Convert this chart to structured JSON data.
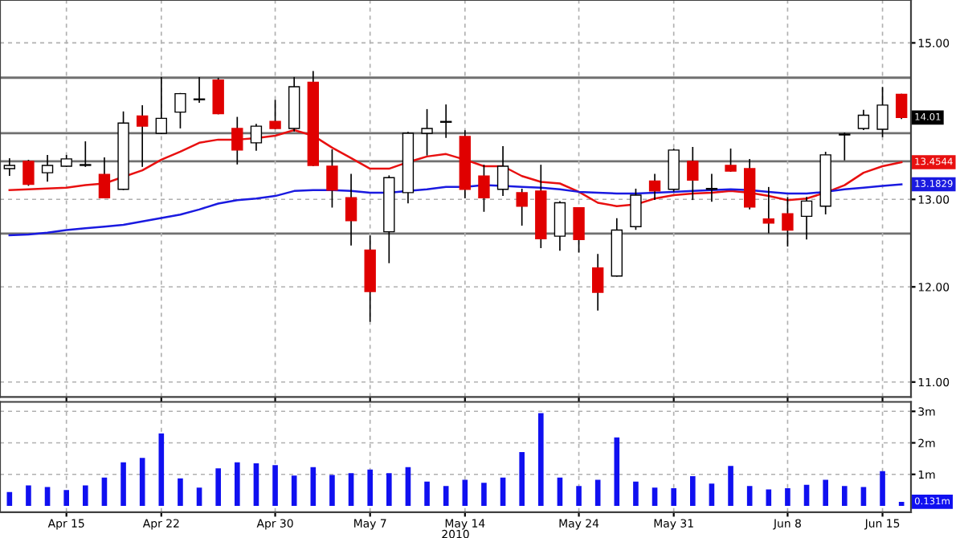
{
  "chart_data": [
    {
      "type": "candlestick",
      "categories": [
        null,
        null,
        null,
        null,
        null,
        null,
        null,
        null,
        null,
        null,
        null,
        null,
        null,
        null,
        null,
        null,
        null,
        null,
        null,
        null,
        null,
        null,
        null,
        null,
        null,
        null,
        null,
        null,
        null,
        null,
        null,
        null,
        null,
        null,
        null,
        null,
        null,
        null,
        null,
        null,
        null,
        null,
        null,
        null,
        null,
        null,
        null,
        null
      ],
      "ohlc": [
        [
          13.37,
          13.49,
          13.29,
          13.41
        ],
        [
          13.46,
          13.47,
          13.17,
          13.18
        ],
        [
          13.32,
          13.53,
          13.22,
          13.41
        ],
        [
          13.4,
          13.53,
          13.4,
          13.49
        ],
        [
          13.41,
          13.7,
          13.4,
          13.42
        ],
        [
          13.3,
          13.5,
          13.02,
          13.02
        ],
        [
          13.12,
          14.08,
          13.12,
          13.94
        ],
        [
          14.03,
          14.16,
          13.4,
          13.9
        ],
        [
          13.81,
          14.53,
          13.81,
          14.0
        ],
        [
          14.08,
          14.32,
          13.88,
          14.32
        ],
        [
          14.24,
          14.53,
          14.21,
          14.25
        ],
        [
          14.5,
          14.52,
          14.06,
          14.06
        ],
        [
          13.87,
          14.01,
          13.43,
          13.6
        ],
        [
          13.69,
          13.92,
          13.6,
          13.9
        ],
        [
          13.96,
          14.23,
          13.87,
          13.87
        ],
        [
          13.87,
          14.53,
          13.84,
          14.41
        ],
        [
          14.47,
          14.61,
          13.41,
          13.41
        ],
        [
          13.4,
          13.6,
          12.91,
          13.11
        ],
        [
          13.02,
          13.3,
          12.47,
          12.75
        ],
        [
          12.41,
          12.57,
          11.63,
          11.95
        ],
        [
          12.62,
          13.28,
          12.27,
          13.26
        ],
        [
          13.08,
          13.82,
          12.96,
          13.81
        ],
        [
          13.81,
          14.11,
          13.54,
          13.87
        ],
        [
          13.95,
          14.17,
          13.76,
          13.96
        ],
        [
          13.77,
          13.84,
          13.02,
          13.12
        ],
        [
          13.28,
          13.41,
          12.86,
          13.02
        ],
        [
          13.12,
          13.64,
          13.05,
          13.4
        ],
        [
          13.08,
          13.12,
          12.7,
          12.92
        ],
        [
          13.1,
          13.41,
          12.44,
          12.54
        ],
        [
          12.57,
          12.97,
          12.41,
          12.96
        ],
        [
          12.9,
          12.9,
          12.39,
          12.53
        ],
        [
          12.21,
          12.36,
          11.75,
          11.94
        ],
        [
          12.12,
          12.77,
          12.12,
          12.64
        ],
        [
          12.68,
          13.12,
          12.65,
          13.05
        ],
        [
          13.22,
          13.3,
          13.0,
          13.1
        ],
        [
          13.12,
          13.61,
          13.1,
          13.6
        ],
        [
          13.46,
          13.63,
          13.0,
          13.23
        ],
        [
          13.12,
          13.3,
          12.98,
          13.13
        ],
        [
          13.41,
          13.61,
          13.34,
          13.34
        ],
        [
          13.37,
          13.48,
          12.89,
          12.91
        ],
        [
          12.77,
          13.14,
          12.61,
          12.72
        ],
        [
          12.83,
          13.02,
          12.46,
          12.64
        ],
        [
          12.8,
          13.02,
          12.54,
          12.98
        ],
        [
          12.92,
          13.57,
          12.83,
          13.54
        ],
        [
          13.79,
          13.81,
          13.48,
          13.8
        ],
        [
          13.87,
          14.1,
          13.86,
          14.04
        ],
        [
          13.86,
          14.4,
          13.77,
          14.17
        ],
        [
          14.31,
          14.31,
          14.0,
          14.01
        ]
      ],
      "series": [
        {
          "type": "line",
          "color": "#e81010",
          "values": [
            13.11,
            13.12,
            13.13,
            13.14,
            13.17,
            13.19,
            13.27,
            13.35,
            13.48,
            13.58,
            13.69,
            13.73,
            13.73,
            13.75,
            13.78,
            13.85,
            13.78,
            13.63,
            13.5,
            13.37,
            13.37,
            13.45,
            13.52,
            13.55,
            13.48,
            13.4,
            13.4,
            13.28,
            13.21,
            13.19,
            13.09,
            12.96,
            12.92,
            12.94,
            13.01,
            13.05,
            13.07,
            13.08,
            13.1,
            13.08,
            13.04,
            12.99,
            13.01,
            13.08,
            13.17,
            13.32,
            13.4,
            13.45
          ]
        },
        {
          "type": "line",
          "color": "#1a1ae0",
          "values": [
            12.58,
            12.59,
            12.61,
            12.64,
            12.66,
            12.68,
            12.7,
            12.74,
            12.78,
            12.82,
            12.88,
            12.95,
            12.99,
            13.01,
            13.04,
            13.1,
            13.11,
            13.11,
            13.1,
            13.08,
            13.08,
            13.1,
            13.12,
            13.15,
            13.15,
            13.17,
            13.16,
            13.15,
            13.14,
            13.12,
            13.09,
            13.08,
            13.07,
            13.07,
            13.08,
            13.09,
            13.1,
            13.11,
            13.12,
            13.11,
            13.09,
            13.07,
            13.07,
            13.09,
            13.12,
            13.14,
            13.16,
            13.18
          ]
        }
      ],
      "log": true,
      "ylim": [
        10.85,
        15.6
      ],
      "yticks": [
        {
          "value": 11,
          "label": "11.00"
        },
        {
          "value": 12,
          "label": "12.00"
        },
        {
          "value": 13,
          "label": "13.00"
        },
        {
          "value": 15,
          "label": "15.00"
        }
      ],
      "ref_lines": [
        {
          "axis": "y",
          "value": 14.53,
          "color": "#707070"
        },
        {
          "axis": "y",
          "value": 13.81,
          "color": "#707070"
        },
        {
          "axis": "y",
          "value": 13.46,
          "color": "#707070"
        },
        {
          "axis": "y",
          "value": 12.6,
          "color": "#707070"
        }
      ],
      "annotations": [
        "14.01",
        "13.4544",
        "13.1829"
      ],
      "grid": true,
      "tick_labels": "y"
    },
    {
      "type": "bar",
      "categories": [
        null,
        null,
        null,
        "Apr 15",
        null,
        null,
        null,
        null,
        "Apr 22",
        null,
        null,
        null,
        null,
        null,
        "Apr 30",
        null,
        null,
        null,
        null,
        "May 7",
        null,
        null,
        null,
        null,
        "May 14",
        null,
        null,
        null,
        null,
        null,
        "May 24",
        null,
        null,
        null,
        null,
        "May 31",
        null,
        null,
        null,
        null,
        null,
        "Jun 8",
        null,
        null,
        null,
        null,
        "Jun 15",
        null
      ],
      "values": [
        0.44,
        0.65,
        0.6,
        0.5,
        0.65,
        0.9,
        1.38,
        1.52,
        2.3,
        0.87,
        0.58,
        1.19,
        1.38,
        1.35,
        1.29,
        0.96,
        1.23,
        0.98,
        1.04,
        1.15,
        1.04,
        1.23,
        0.77,
        0.63,
        0.83,
        0.73,
        0.9,
        1.71,
        2.94,
        0.9,
        0.63,
        0.83,
        2.17,
        0.77,
        0.58,
        0.56,
        0.94,
        0.71,
        1.27,
        0.63,
        0.52,
        0.56,
        0.67,
        0.83,
        0.63,
        0.6,
        1.1,
        0.13
      ],
      "color": "#1010f0",
      "xlabel": "2010",
      "ylim": [
        -0.2,
        3.3
      ],
      "yticks": [
        {
          "value": 1,
          "label": "1m"
        },
        {
          "value": 2,
          "label": "2m"
        },
        {
          "value": 3,
          "label": "3m"
        }
      ],
      "annotations": [
        "0.131m"
      ],
      "grid": true
    }
  ]
}
